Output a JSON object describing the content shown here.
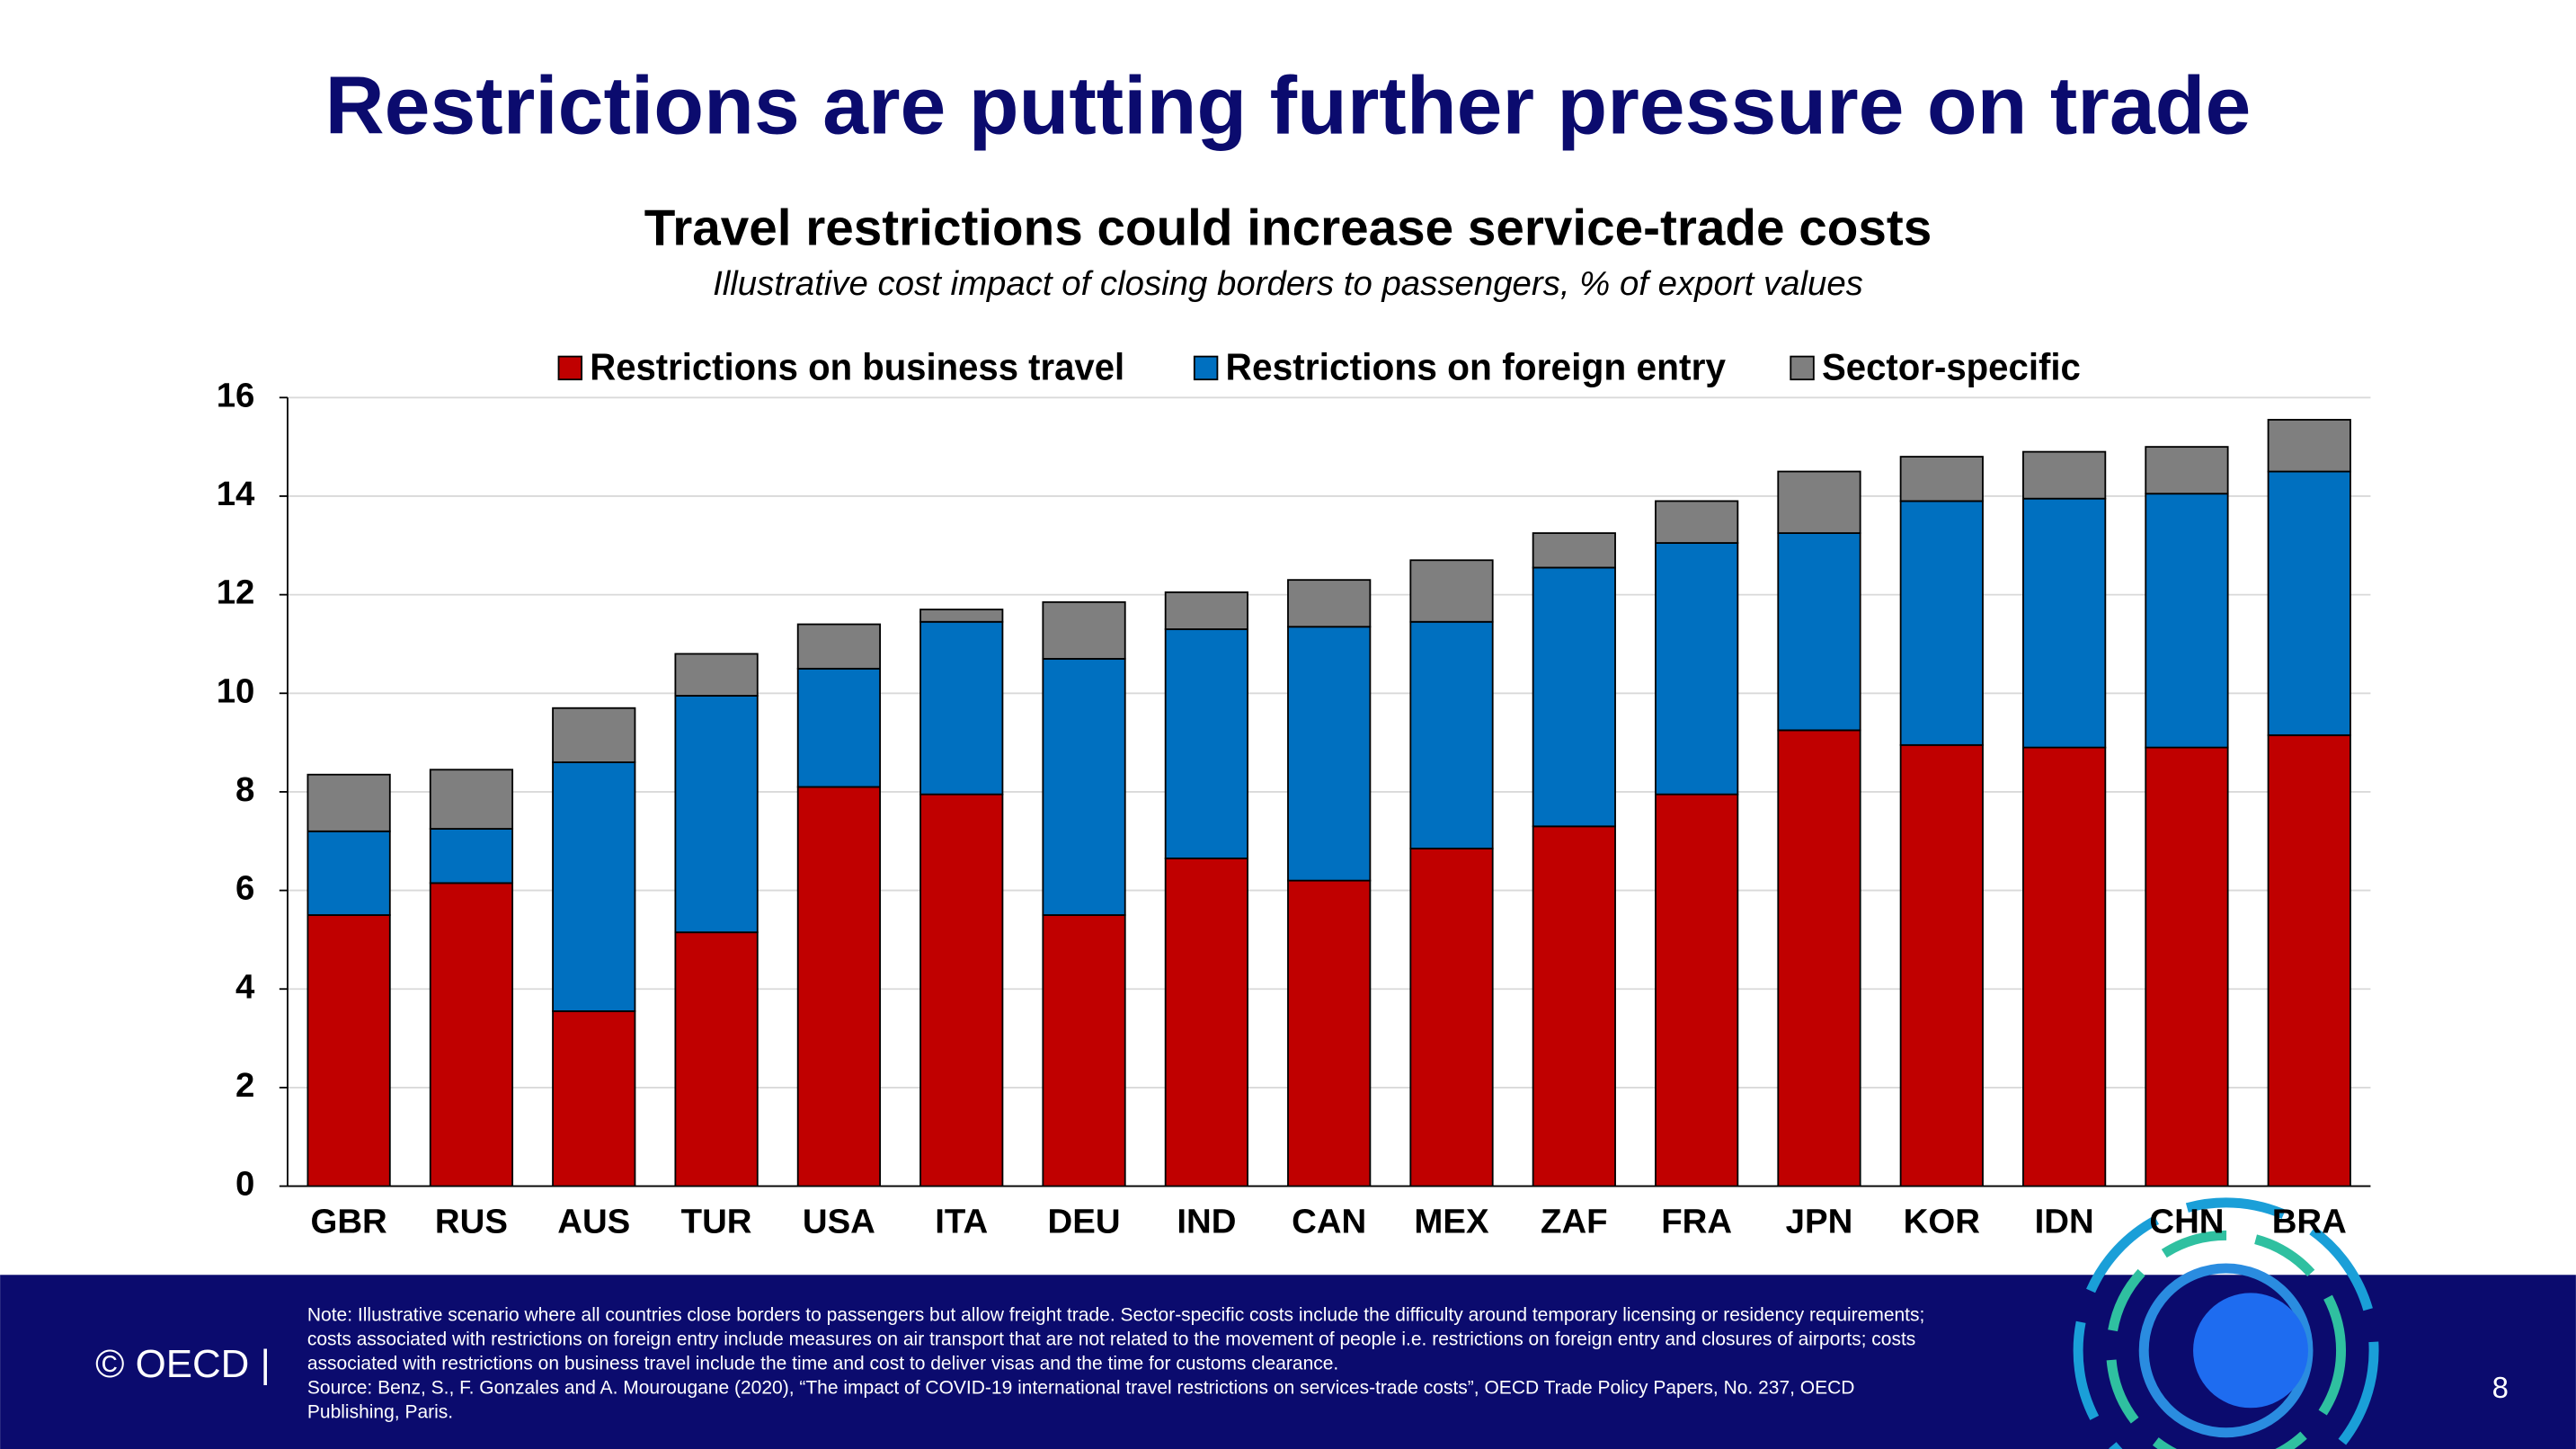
{
  "page": {
    "title": "Restrictions are putting further pressure on trade"
  },
  "chart_data": {
    "type": "stacked_bar",
    "title": "Travel restrictions could increase service-trade costs",
    "subtitle": "Illustrative cost impact of closing borders to passengers, % of export values",
    "categories": [
      "GBR",
      "RUS",
      "AUS",
      "TUR",
      "USA",
      "ITA",
      "DEU",
      "IND",
      "CAN",
      "MEX",
      "ZAF",
      "FRA",
      "JPN",
      "KOR",
      "IDN",
      "CHN",
      "BRA"
    ],
    "series": [
      {
        "name": "Restrictions on business travel",
        "color": "#c00000",
        "values": [
          5.5,
          6.15,
          3.55,
          5.15,
          8.1,
          7.95,
          5.5,
          6.65,
          6.2,
          6.85,
          7.3,
          7.95,
          9.25,
          8.95,
          8.9,
          8.9,
          9.15
        ]
      },
      {
        "name": "Restrictions on foreign entry",
        "color": "#0070c0",
        "values": [
          1.7,
          1.1,
          5.05,
          4.8,
          2.4,
          3.5,
          5.2,
          4.65,
          5.15,
          4.6,
          5.25,
          5.1,
          4.0,
          4.95,
          5.05,
          5.15,
          5.35
        ]
      },
      {
        "name": "Sector-specific",
        "color": "#7f7f7f",
        "values": [
          1.15,
          1.2,
          1.1,
          0.85,
          0.9,
          0.25,
          1.15,
          0.75,
          0.95,
          1.25,
          0.7,
          0.85,
          1.25,
          0.9,
          0.95,
          0.95,
          1.05
        ]
      }
    ],
    "ylim": [
      0,
      16
    ],
    "yticks": [
      0,
      2,
      4,
      6,
      8,
      10,
      12,
      14,
      16
    ],
    "grid": true,
    "legend": "top"
  },
  "footer": {
    "copyright": "© OECD |",
    "note": [
      "Note: Illustrative scenario where all countries close borders to passengers but allow freight trade. Sector-specific costs include the difficulty around temporary licensing or residency requirements;",
      "costs associated with restrictions on foreign entry include measures on air transport that are not related to the movement of people i.e. restrictions on foreign entry and closures of airports; costs",
      "associated with restrictions on business travel include the time and cost to deliver visas and the time for customs clearance.",
      "Source: Benz, S., F. Gonzales and A. Mourougane (2020), “The impact of COVID-19 international travel restrictions on services-trade costs”, OECD Trade Policy Papers, No. 237, OECD",
      "Publishing, Paris."
    ],
    "page_number": "8"
  }
}
